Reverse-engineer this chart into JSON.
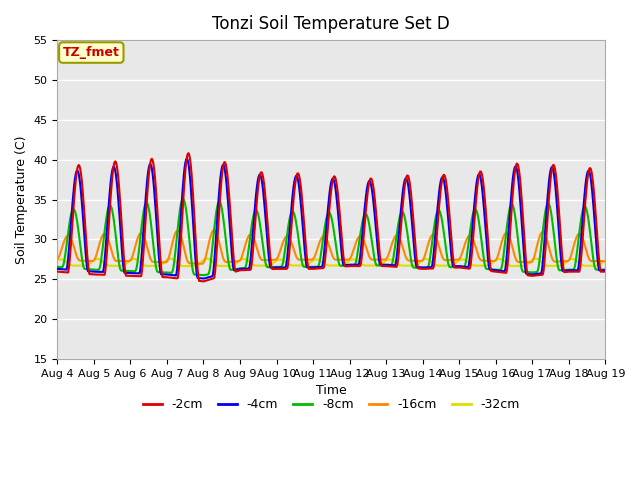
{
  "title": "Tonzi Soil Temperature Set D",
  "xlabel": "Time",
  "ylabel": "Soil Temperature (C)",
  "ylim": [
    15,
    55
  ],
  "xlim": [
    0,
    15
  ],
  "yticks": [
    15,
    20,
    25,
    30,
    35,
    40,
    45,
    50,
    55
  ],
  "xtick_labels": [
    "Aug 4",
    "Aug 5",
    "Aug 6",
    "Aug 7",
    "Aug 8",
    "Aug 9",
    "Aug 10",
    "Aug 11",
    "Aug 12",
    "Aug 13",
    "Aug 14",
    "Aug 15",
    "Aug 16",
    "Aug 17",
    "Aug 18",
    "Aug 19"
  ],
  "annotation": "TZ_fmet",
  "annotation_color": "#cc0000",
  "annotation_bg": "#ffffcc",
  "legend_labels": [
    "-2cm",
    "-4cm",
    "-8cm",
    "-16cm",
    "-32cm"
  ],
  "legend_colors": [
    "#dd0000",
    "#0000ee",
    "#00bb00",
    "#ff8800",
    "#dddd00"
  ],
  "bg_color": "#e8e8e8",
  "grid_color": "#ffffff",
  "title_fontsize": 12,
  "axis_fontsize": 9,
  "tick_fontsize": 8,
  "legend_fontsize": 9
}
